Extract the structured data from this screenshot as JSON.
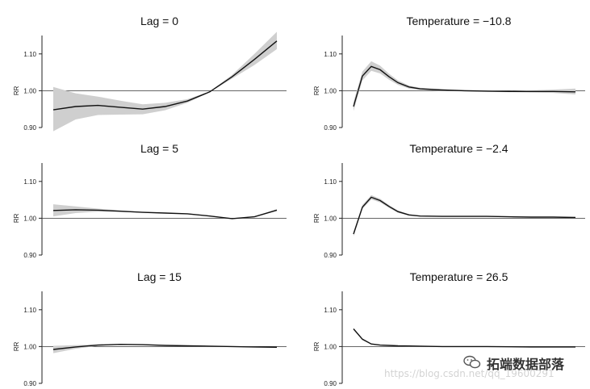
{
  "chart_data": [
    {
      "type": "line",
      "title": "Lag = 0",
      "ylabel": "RR",
      "ylim": [
        0.9,
        1.15
      ],
      "yticks": [
        0.9,
        1.0,
        1.1
      ],
      "ytick_labels": [
        "0.90",
        "1.00",
        "1.10"
      ],
      "xlim": [
        0,
        100
      ],
      "reference_y": 1.0,
      "series": [
        {
          "name": "RR",
          "x": [
            0,
            10,
            20,
            30,
            40,
            50,
            60,
            70,
            80,
            90,
            100
          ],
          "values": [
            0.948,
            0.957,
            0.96,
            0.955,
            0.95,
            0.957,
            0.972,
            0.997,
            1.038,
            1.085,
            1.135
          ],
          "lower": [
            0.89,
            0.922,
            0.934,
            0.935,
            0.936,
            0.947,
            0.967,
            0.996,
            1.033,
            1.07,
            1.113
          ],
          "upper": [
            1.01,
            0.993,
            0.984,
            0.973,
            0.963,
            0.967,
            0.977,
            0.998,
            1.043,
            1.1,
            1.16
          ]
        }
      ]
    },
    {
      "type": "line",
      "title": "Temperature = −10.8",
      "ylabel": "RR",
      "ylim": [
        0.9,
        1.15
      ],
      "yticks": [
        0.9,
        1.0,
        1.1
      ],
      "ytick_labels": [
        "0.90",
        "1.00",
        "1.10"
      ],
      "xlim": [
        0,
        100
      ],
      "reference_y": 1.0,
      "series": [
        {
          "name": "RR",
          "x": [
            0,
            4,
            8,
            12,
            16,
            20,
            25,
            30,
            40,
            50,
            60,
            70,
            80,
            90,
            100
          ],
          "values": [
            0.957,
            1.04,
            1.066,
            1.057,
            1.038,
            1.022,
            1.01,
            1.005,
            1.002,
            1.0,
            0.999,
            0.998,
            0.998,
            0.998,
            0.997
          ],
          "lower": [
            0.945,
            1.028,
            1.054,
            1.047,
            1.03,
            1.016,
            1.006,
            1.002,
            1.0,
            0.998,
            0.997,
            0.996,
            0.995,
            0.994,
            0.99
          ],
          "upper": [
            0.97,
            1.052,
            1.08,
            1.068,
            1.046,
            1.028,
            1.014,
            1.008,
            1.004,
            1.002,
            1.001,
            1.0,
            1.001,
            1.003,
            1.006
          ]
        }
      ]
    },
    {
      "type": "line",
      "title": "Lag = 5",
      "ylabel": "RR",
      "ylim": [
        0.9,
        1.15
      ],
      "yticks": [
        0.9,
        1.0,
        1.1
      ],
      "ytick_labels": [
        "0.90",
        "1.00",
        "1.10"
      ],
      "xlim": [
        0,
        100
      ],
      "reference_y": 1.0,
      "series": [
        {
          "name": "RR",
          "x": [
            0,
            10,
            20,
            30,
            40,
            50,
            60,
            70,
            80,
            90,
            100
          ],
          "values": [
            1.021,
            1.023,
            1.022,
            1.019,
            1.016,
            1.014,
            1.012,
            1.006,
            0.999,
            1.004,
            1.022
          ],
          "lower": [
            1.005,
            1.014,
            1.018,
            1.017,
            1.015,
            1.013,
            1.011,
            1.005,
            0.998,
            1.003,
            1.02
          ],
          "upper": [
            1.038,
            1.032,
            1.026,
            1.021,
            1.017,
            1.015,
            1.013,
            1.007,
            1.0,
            1.005,
            1.025
          ]
        }
      ]
    },
    {
      "type": "line",
      "title": "Temperature = −2.4",
      "ylabel": "RR",
      "ylim": [
        0.9,
        1.15
      ],
      "yticks": [
        0.9,
        1.0,
        1.1
      ],
      "ytick_labels": [
        "0.90",
        "1.00",
        "1.10"
      ],
      "xlim": [
        0,
        100
      ],
      "reference_y": 1.0,
      "series": [
        {
          "name": "RR",
          "x": [
            0,
            4,
            8,
            12,
            16,
            20,
            25,
            30,
            40,
            50,
            60,
            70,
            80,
            90,
            100
          ],
          "values": [
            0.957,
            1.03,
            1.057,
            1.048,
            1.032,
            1.018,
            1.009,
            1.006,
            1.005,
            1.005,
            1.005,
            1.004,
            1.003,
            1.003,
            1.002
          ],
          "lower": [
            0.951,
            1.025,
            1.051,
            1.043,
            1.028,
            1.015,
            1.007,
            1.005,
            1.004,
            1.004,
            1.004,
            1.003,
            1.002,
            1.002,
            1.001
          ],
          "upper": [
            0.963,
            1.036,
            1.063,
            1.053,
            1.036,
            1.021,
            1.011,
            1.007,
            1.006,
            1.006,
            1.006,
            1.005,
            1.004,
            1.004,
            1.003
          ]
        }
      ]
    },
    {
      "type": "line",
      "title": "Lag = 15",
      "ylabel": "RR",
      "ylim": [
        0.9,
        1.15
      ],
      "yticks": [
        0.9,
        1.0,
        1.1
      ],
      "ytick_labels": [
        "0.90",
        "1.00",
        "1.10"
      ],
      "xlim": [
        0,
        100
      ],
      "reference_y": 1.0,
      "series": [
        {
          "name": "RR",
          "x": [
            0,
            10,
            20,
            30,
            40,
            50,
            60,
            70,
            80,
            90,
            100
          ],
          "values": [
            0.992,
            0.999,
            1.004,
            1.006,
            1.005,
            1.003,
            1.002,
            1.001,
            1.0,
            0.999,
            0.998
          ],
          "lower": [
            0.982,
            0.994,
            1.002,
            1.005,
            1.004,
            1.002,
            1.001,
            1.0,
            0.999,
            0.998,
            0.997
          ],
          "upper": [
            1.002,
            1.004,
            1.006,
            1.007,
            1.006,
            1.004,
            1.003,
            1.002,
            1.001,
            1.0,
            0.999
          ]
        }
      ]
    },
    {
      "type": "line",
      "title": "Temperature = 26.5",
      "ylabel": "RR",
      "ylim": [
        0.9,
        1.15
      ],
      "yticks": [
        0.9,
        1.0,
        1.1
      ],
      "ytick_labels": [
        "0.90",
        "1.00",
        "1.10"
      ],
      "xlim": [
        0,
        100
      ],
      "reference_y": 1.0,
      "series": [
        {
          "name": "RR",
          "x": [
            0,
            4,
            8,
            12,
            16,
            20,
            30,
            40,
            60,
            80,
            100
          ],
          "values": [
            1.048,
            1.02,
            1.007,
            1.004,
            1.003,
            1.002,
            1.001,
            1.0,
            1.0,
            0.999,
            0.999
          ],
          "lower": [
            1.046,
            1.018,
            1.006,
            1.003,
            1.002,
            1.001,
            1.0,
            0.999,
            0.999,
            0.998,
            0.998
          ],
          "upper": [
            1.05,
            1.022,
            1.008,
            1.005,
            1.004,
            1.003,
            1.002,
            1.001,
            1.001,
            1.0,
            1.0
          ]
        }
      ]
    }
  ],
  "watermark": {
    "brand": "拓端数据部落",
    "url": "https://blog.csdn.net/qq_19600291",
    "logo_icon": "wechat-logo-icon"
  }
}
